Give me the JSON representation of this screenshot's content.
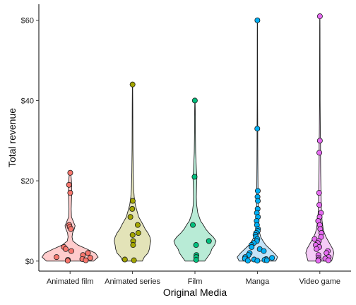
{
  "chart_data": {
    "type": "violin",
    "xlabel": "Original Media",
    "ylabel": "Total revenue",
    "ylim": [
      -2.5,
      64
    ],
    "y_ticks": [
      0,
      20,
      40,
      60
    ],
    "y_tick_labels": [
      "$0",
      "$20",
      "$40",
      "$60"
    ],
    "grid": false,
    "legend": "none",
    "categories": [
      "Animated film",
      "Animated series",
      "Film",
      "Manga",
      "Video game"
    ],
    "series": [
      {
        "category": "Animated film",
        "color": "#F8766D",
        "fill": "#FFCCCC",
        "points": [
          22,
          19,
          17,
          9,
          8.5,
          8,
          3.5,
          3,
          2.5,
          2,
          1.5,
          1,
          0.8,
          0.5,
          0.3,
          0.2,
          0.1
        ],
        "density": [
          [
            0,
            0.84
          ],
          [
            1,
            1
          ],
          [
            2,
            0.9
          ],
          [
            3,
            0.6
          ],
          [
            4,
            0.28
          ],
          [
            5,
            0.1
          ],
          [
            6,
            0.07
          ],
          [
            7,
            0.09
          ],
          [
            8,
            0.15
          ],
          [
            8.8,
            0.18
          ],
          [
            9.6,
            0.13
          ],
          [
            11,
            0.05
          ],
          [
            13,
            0.04
          ],
          [
            15,
            0.05
          ],
          [
            17,
            0.06
          ],
          [
            18.5,
            0.06
          ],
          [
            20,
            0.05
          ],
          [
            21.5,
            0.03
          ],
          [
            22,
            0.01
          ]
        ]
      },
      {
        "category": "Animated series",
        "color": "#A3A500",
        "fill": "#E3E3B8",
        "points": [
          44,
          15,
          13,
          11,
          9,
          7,
          6.5,
          5,
          4,
          0.4,
          0.2
        ],
        "density": [
          [
            0,
            0.35
          ],
          [
            1,
            0.42
          ],
          [
            2,
            0.55
          ],
          [
            3,
            0.6
          ],
          [
            4,
            0.62
          ],
          [
            5,
            0.65
          ],
          [
            6,
            0.62
          ],
          [
            7,
            0.55
          ],
          [
            8,
            0.45
          ],
          [
            9,
            0.38
          ],
          [
            10,
            0.3
          ],
          [
            11,
            0.22
          ],
          [
            12,
            0.18
          ],
          [
            13,
            0.14
          ],
          [
            14,
            0.1
          ],
          [
            16,
            0.06
          ],
          [
            18,
            0.04
          ],
          [
            22,
            0.025
          ],
          [
            28,
            0.015
          ],
          [
            34,
            0.012
          ],
          [
            39,
            0.01
          ],
          [
            44,
            0.005
          ]
        ]
      },
      {
        "category": "Film",
        "color": "#00BF7D",
        "fill": "#B8EBD6",
        "points": [
          40,
          21,
          9,
          5,
          4,
          1.5,
          1,
          0.3
        ],
        "density": [
          [
            0,
            0.35
          ],
          [
            1,
            0.45
          ],
          [
            2,
            0.55
          ],
          [
            3,
            0.6
          ],
          [
            4,
            0.7
          ],
          [
            5,
            0.75
          ],
          [
            6,
            0.65
          ],
          [
            7,
            0.5
          ],
          [
            8,
            0.38
          ],
          [
            9,
            0.3
          ],
          [
            10,
            0.2
          ],
          [
            12,
            0.1
          ],
          [
            14,
            0.06
          ],
          [
            16,
            0.05
          ],
          [
            19,
            0.06
          ],
          [
            21,
            0.07
          ],
          [
            23,
            0.05
          ],
          [
            27,
            0.025
          ],
          [
            32,
            0.015
          ],
          [
            36,
            0.015
          ],
          [
            40,
            0.005
          ]
        ]
      },
      {
        "category": "Manga",
        "color": "#00B0F6",
        "fill": "#C3E3F8",
        "points": [
          60,
          33,
          17.5,
          16,
          15,
          13,
          12,
          11,
          10,
          9,
          8,
          7.5,
          7,
          6.5,
          6,
          5.5,
          5,
          4.5,
          4,
          3.5,
          3,
          2.5,
          2,
          1.5,
          1,
          0.8,
          0.6,
          0.5,
          0.4,
          0.3,
          0.2,
          0.1,
          0.1
        ],
        "density": [
          [
            0,
            0.65
          ],
          [
            1,
            0.72
          ],
          [
            2,
            0.6
          ],
          [
            3,
            0.45
          ],
          [
            4,
            0.3
          ],
          [
            5,
            0.2
          ],
          [
            6,
            0.12
          ],
          [
            7,
            0.08
          ],
          [
            8,
            0.06
          ],
          [
            10,
            0.04
          ],
          [
            13,
            0.03
          ],
          [
            16,
            0.025
          ],
          [
            20,
            0.02
          ],
          [
            25,
            0.015
          ],
          [
            30,
            0.012
          ],
          [
            33,
            0.012
          ],
          [
            36,
            0.01
          ],
          [
            40,
            0.008
          ],
          [
            48,
            0.007
          ],
          [
            55,
            0.006
          ],
          [
            60,
            0.004
          ]
        ]
      },
      {
        "category": "Video game",
        "color": "#E76BF3",
        "fill": "#F5CCF7",
        "points": [
          61,
          30,
          27,
          17,
          14,
          12,
          11,
          10,
          9,
          8,
          7,
          6,
          5.5,
          5,
          4.5,
          4,
          3.5,
          3,
          2.5,
          2,
          1.5,
          1,
          0.8,
          0.6,
          0.4,
          0.2,
          0.1
        ],
        "density": [
          [
            0,
            0.42
          ],
          [
            1,
            0.46
          ],
          [
            2,
            0.5
          ],
          [
            3,
            0.46
          ],
          [
            4,
            0.38
          ],
          [
            5,
            0.3
          ],
          [
            6,
            0.22
          ],
          [
            7,
            0.16
          ],
          [
            8,
            0.12
          ],
          [
            10,
            0.08
          ],
          [
            12,
            0.06
          ],
          [
            14,
            0.05
          ],
          [
            16,
            0.045
          ],
          [
            18,
            0.04
          ],
          [
            22,
            0.03
          ],
          [
            26,
            0.025
          ],
          [
            29,
            0.025
          ],
          [
            32,
            0.018
          ],
          [
            40,
            0.01
          ],
          [
            50,
            0.008
          ],
          [
            58,
            0.006
          ],
          [
            61,
            0.004
          ]
        ]
      }
    ]
  }
}
